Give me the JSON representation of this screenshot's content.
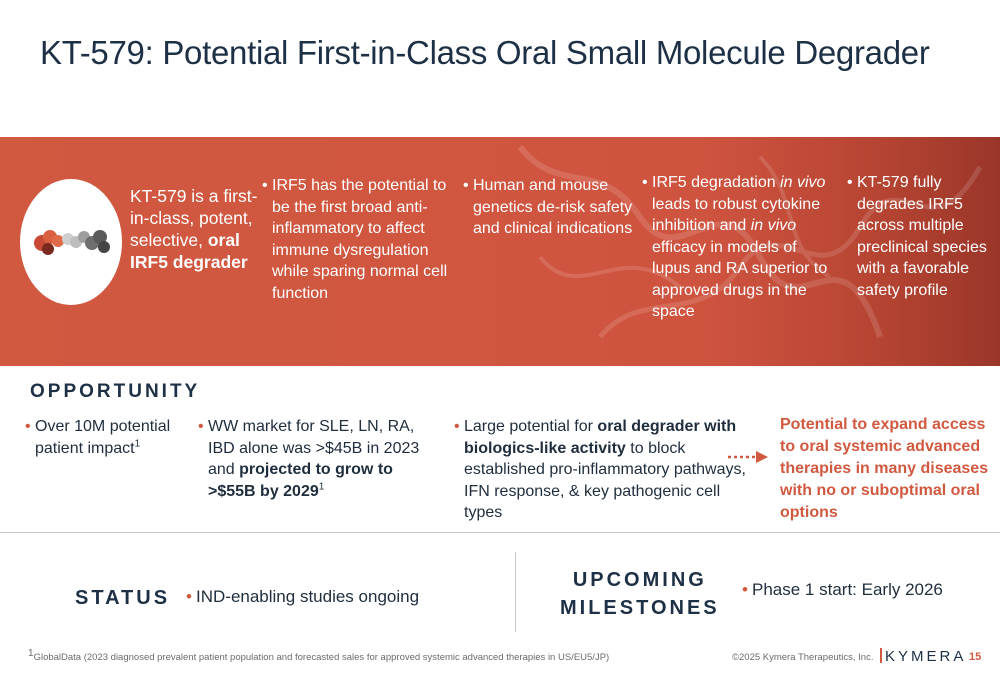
{
  "title": "KT-579: Potential First-in-Class Oral Small Molecule Degrader",
  "colors": {
    "accent": "#d15940",
    "navy": "#1d3045"
  },
  "band": {
    "intro_pre": "KT-579 is a first-in-class, potent, selective, ",
    "intro_bold": "oral IRF5 degrader",
    "col1": "IRF5 has the potential to be the first broad anti-inflammatory to affect immune dysregulation while sparing normal cell function",
    "col2": "Human and mouse genetics de-risk safety and clinical indications",
    "col3_a": "IRF5 degradation ",
    "col3_b": "in vivo",
    "col3_c": " leads to robust cytokine inhibition and ",
    "col3_d": "in vivo",
    "col3_e": " efficacy in models of lupus and RA superior to approved drugs in the space",
    "col4": "KT-579 fully degrades IRF5 across multiple preclinical species with a favorable safety profile"
  },
  "opportunity": {
    "heading": "OPPORTUNITY",
    "b1_text": "Over 10M potential patient impact",
    "b1_sup": "1",
    "b2_pre": "WW market for SLE, LN, RA, IBD alone was >$45B in 2023 and ",
    "b2_bold": "projected to grow to >$55B by 2029",
    "b2_sup": "1",
    "b3_pre": "Large potential for ",
    "b3_bold": "oral degrader with biologics-like activity",
    "b3_post": " to block established pro-inflammatory pathways, IFN response, & key pathogenic cell types",
    "highlight": "Potential to expand access to oral systemic advanced therapies in many diseases with no or suboptimal oral options"
  },
  "status": {
    "heading": "STATUS",
    "item": "IND-enabling studies ongoing"
  },
  "upcoming": {
    "heading_line1": "UPCOMING",
    "heading_line2": "MILESTONES",
    "item": "Phase 1 start: Early 2026"
  },
  "footer": {
    "footnote_sup": "1",
    "footnote": "GlobalData (2023 diagnosed prevalent patient population and forecasted sales for approved systemic advanced therapies in US/EU5/JP)",
    "copyright": "©2025 Kymera Therapeutics, Inc.",
    "logo": "KYMERA",
    "page": "15"
  },
  "bullet_char": "•"
}
